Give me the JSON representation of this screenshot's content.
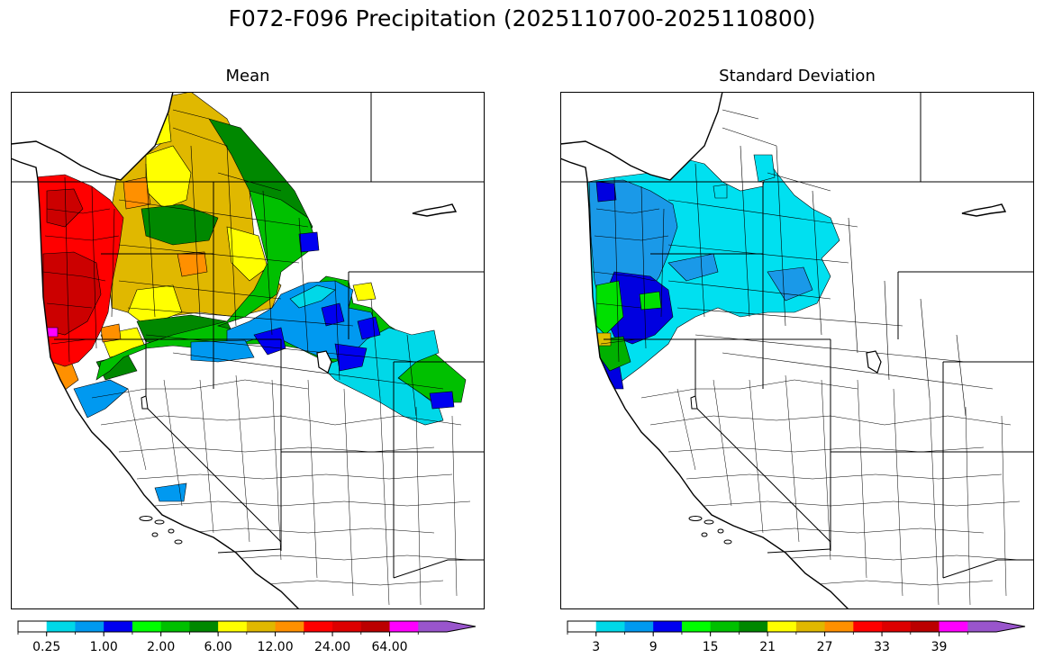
{
  "figure": {
    "title": "F072-F096 Precipitation (2025110700-2025110800)"
  },
  "panels": [
    {
      "title": "Mean",
      "colorbar": {
        "colors": [
          "#ffffff",
          "#00d8e8",
          "#0099f0",
          "#0000f0",
          "#00ff00",
          "#00c000",
          "#008800",
          "#ffff00",
          "#e0b800",
          "#ff9000",
          "#ff0000",
          "#dd0000",
          "#bb0000",
          "#ff00ff",
          "#9955cc"
        ],
        "extend": "max",
        "tick_labels": [
          "0.25",
          "1.00",
          "2.00",
          "6.00",
          "12.00",
          "24.00",
          "64.00"
        ],
        "tick_boundaries": [
          1,
          3,
          5,
          7,
          9,
          11,
          13
        ]
      },
      "region_colors": {
        "north_coast": "#ff0000",
        "coast_dark": "#cc0000",
        "interior_gold": "#e0b800",
        "interior_yellow": "#ffff00",
        "green_dark": "#008800",
        "green": "#00c000",
        "blue_light": "#0099f0",
        "blue": "#0000f0",
        "cyan": "#00d8e8",
        "orange": "#ff9000",
        "magenta": "#ff00ff"
      }
    },
    {
      "title": "Standard Deviation",
      "colorbar": {
        "colors": [
          "#ffffff",
          "#00d8e8",
          "#0099f0",
          "#0000f0",
          "#00ff00",
          "#00c000",
          "#008800",
          "#ffff00",
          "#e0b800",
          "#ff9000",
          "#ff0000",
          "#dd0000",
          "#bb0000",
          "#ff00ff",
          "#9955cc"
        ],
        "extend": "max",
        "tick_labels": [
          "3",
          "9",
          "15",
          "21",
          "27",
          "33",
          "39"
        ],
        "tick_boundaries": [
          1,
          3,
          5,
          7,
          9,
          11,
          13
        ]
      },
      "region_colors": {
        "cyan": "#00e0f0",
        "blue_light": "#1a99e8",
        "blue": "#0000e0",
        "green": "#00e000",
        "green_dark": "#00b000",
        "yellow": "#e0c000"
      }
    }
  ]
}
